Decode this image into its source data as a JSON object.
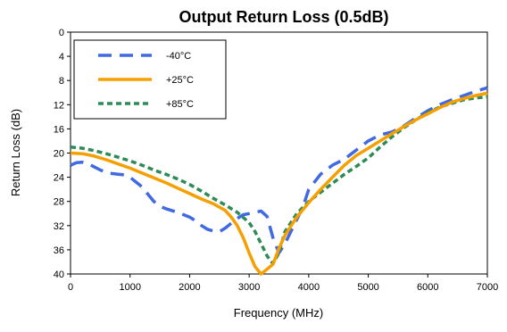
{
  "chart_data": {
    "type": "line",
    "title": "Output Return Loss (0.5dB)",
    "xlabel": "Frequency (MHz)",
    "ylabel": "Return Loss (dB)",
    "xlim": [
      0,
      7000
    ],
    "ylim": [
      0,
      40
    ],
    "y_inverted": true,
    "xticks": [
      0,
      1000,
      2000,
      3000,
      4000,
      5000,
      6000,
      7000
    ],
    "yticks": [
      0,
      4,
      8,
      12,
      16,
      20,
      24,
      28,
      32,
      36,
      40
    ],
    "grid": false,
    "legend_position": "top-left",
    "series": [
      {
        "name": "-40°C",
        "color": "#4169E1",
        "dash": "long-dash",
        "x": [
          0,
          100,
          200,
          300,
          400,
          500,
          600,
          700,
          800,
          900,
          1000,
          1100,
          1200,
          1300,
          1400,
          1500,
          1600,
          1700,
          1800,
          1900,
          2000,
          2100,
          2200,
          2300,
          2400,
          2500,
          2600,
          2700,
          2800,
          2900,
          3000,
          3100,
          3200,
          3300,
          3400,
          3500,
          3600,
          3700,
          3800,
          3900,
          4000,
          4200,
          4400,
          4600,
          4800,
          5000,
          5200,
          5400,
          5600,
          5800,
          6000,
          6200,
          6400,
          6600,
          6800,
          7000
        ],
        "values": [
          22.0,
          21.6,
          21.5,
          21.8,
          22.3,
          22.8,
          23.2,
          23.4,
          23.5,
          23.6,
          24.0,
          24.8,
          25.6,
          26.8,
          28.0,
          28.8,
          29.2,
          29.5,
          29.8,
          30.2,
          30.6,
          31.2,
          32.0,
          32.6,
          32.9,
          33.0,
          32.4,
          31.6,
          30.8,
          30.2,
          30.0,
          29.8,
          29.6,
          30.5,
          34.0,
          36.5,
          35.0,
          33.0,
          31.0,
          29.0,
          26.0,
          23.5,
          22.0,
          21.0,
          19.5,
          18.0,
          17.0,
          16.5,
          15.5,
          14.2,
          13.0,
          12.0,
          11.2,
          10.5,
          9.8,
          9.2
        ]
      },
      {
        "name": "+25°C",
        "color": "#F5A000",
        "dash": "solid",
        "x": [
          0,
          200,
          400,
          600,
          800,
          1000,
          1200,
          1400,
          1600,
          1800,
          2000,
          2200,
          2400,
          2600,
          2700,
          2800,
          2900,
          3000,
          3100,
          3200,
          3300,
          3400,
          3500,
          3600,
          3800,
          4000,
          4200,
          4400,
          4600,
          4800,
          5000,
          5200,
          5400,
          5600,
          5800,
          6000,
          6200,
          6400,
          6600,
          6800,
          7000
        ],
        "values": [
          20.0,
          20.1,
          20.5,
          21.1,
          21.8,
          22.5,
          23.3,
          24.1,
          24.9,
          25.8,
          26.7,
          27.6,
          28.4,
          29.5,
          30.6,
          32.0,
          34.0,
          36.5,
          38.8,
          40.0,
          39.2,
          38.4,
          35.8,
          33.6,
          30.6,
          28.2,
          26.0,
          24.0,
          22.0,
          20.4,
          19.2,
          18.0,
          16.8,
          15.6,
          14.5,
          13.5,
          12.5,
          11.6,
          11.0,
          10.5,
          10.1
        ]
      },
      {
        "name": "+85°C",
        "color": "#2E8B57",
        "dash": "short-dash",
        "x": [
          0,
          200,
          400,
          600,
          800,
          1000,
          1200,
          1400,
          1600,
          1800,
          2000,
          2200,
          2400,
          2600,
          2800,
          3000,
          3100,
          3200,
          3300,
          3400,
          3500,
          3600,
          3800,
          4000,
          4200,
          4400,
          4600,
          4800,
          5000,
          5200,
          5400,
          5600,
          5800,
          6000,
          6200,
          6400,
          6600,
          6800,
          7000
        ],
        "values": [
          19.0,
          19.2,
          19.6,
          20.1,
          20.7,
          21.3,
          22.0,
          22.8,
          23.5,
          24.3,
          25.2,
          26.3,
          27.5,
          28.6,
          29.8,
          31.5,
          33.0,
          35.0,
          37.0,
          38.3,
          36.5,
          33.0,
          30.0,
          28.0,
          26.5,
          25.0,
          23.5,
          22.2,
          20.8,
          19.0,
          17.3,
          15.8,
          14.5,
          13.3,
          12.4,
          11.8,
          11.2,
          10.9,
          10.7
        ]
      }
    ]
  }
}
